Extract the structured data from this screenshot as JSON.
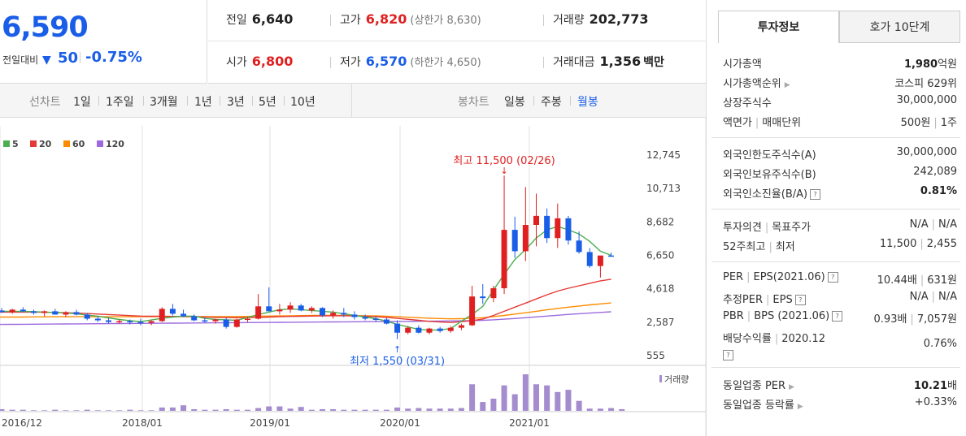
{
  "price": {
    "current": "6,590",
    "change_label": "전일대비",
    "change_dir_icon": "down-triangle",
    "change_value": "50",
    "change_pct": "-0.75%"
  },
  "stats": {
    "prev_close_label": "전일",
    "prev_close": "6,640",
    "high_label": "고가",
    "high": "6,820",
    "upper_limit_label": "(상한가 8,630)",
    "volume_label": "거래량",
    "volume": "202,773",
    "open_label": "시가",
    "open": "6,800",
    "low_label": "저가",
    "low": "6,570",
    "lower_limit_label": "(하한가 4,650)",
    "trade_value_label": "거래대금",
    "trade_value": "1,356",
    "trade_value_unit": "백만"
  },
  "toolbar": {
    "line_chart_label": "선차트",
    "ranges": [
      "1일",
      "1주일",
      "3개월",
      "1년",
      "3년",
      "5년",
      "10년"
    ],
    "candle_chart_label": "봉차트",
    "candle_periods": [
      "일봉",
      "주봉",
      "월봉"
    ],
    "active_candle_period": "월봉"
  },
  "chart_data": {
    "type": "candlestick",
    "period": "monthly",
    "legend": [
      {
        "name": "5",
        "color": "#4caf50"
      },
      {
        "name": "20",
        "color": "#e53935"
      },
      {
        "name": "60",
        "color": "#fb8c00"
      },
      {
        "name": "120",
        "color": "#9c6ade"
      }
    ],
    "y_ticks": [
      "12,745",
      "10,713",
      "8,682",
      "6,650",
      "4,618",
      "2,587",
      "555"
    ],
    "y_range": [
      555,
      12745
    ],
    "x_ticks": [
      "2016/12",
      "2018/01",
      "2019/01",
      "2020/01",
      "2021/01"
    ],
    "high_annotation": "최고 11,500 (02/26)",
    "low_annotation": "최저 1,550 (03/31)",
    "volume_label": "거래량",
    "candles": [
      {
        "o": 3300,
        "h": 3450,
        "l": 3150,
        "c": 3200
      },
      {
        "o": 3200,
        "h": 3400,
        "l": 3100,
        "c": 3350
      },
      {
        "o": 3350,
        "h": 3500,
        "l": 3200,
        "c": 3250
      },
      {
        "o": 3250,
        "h": 3350,
        "l": 3050,
        "c": 3150
      },
      {
        "o": 3150,
        "h": 3300,
        "l": 2950,
        "c": 3250
      },
      {
        "o": 3250,
        "h": 3400,
        "l": 3050,
        "c": 3050
      },
      {
        "o": 3050,
        "h": 3250,
        "l": 2900,
        "c": 3200
      },
      {
        "o": 3200,
        "h": 3350,
        "l": 3000,
        "c": 3050
      },
      {
        "o": 3050,
        "h": 3150,
        "l": 2700,
        "c": 2800
      },
      {
        "o": 2800,
        "h": 2950,
        "l": 2600,
        "c": 2700
      },
      {
        "o": 2700,
        "h": 2850,
        "l": 2500,
        "c": 2600
      },
      {
        "o": 2600,
        "h": 2750,
        "l": 2500,
        "c": 2650
      },
      {
        "o": 2650,
        "h": 2750,
        "l": 2450,
        "c": 2600
      },
      {
        "o": 2600,
        "h": 2800,
        "l": 2400,
        "c": 2550
      },
      {
        "o": 2550,
        "h": 2700,
        "l": 2400,
        "c": 2650
      },
      {
        "o": 2650,
        "h": 3500,
        "l": 2600,
        "c": 3400
      },
      {
        "o": 3400,
        "h": 3700,
        "l": 3000,
        "c": 3100
      },
      {
        "o": 3100,
        "h": 3350,
        "l": 2900,
        "c": 2950
      },
      {
        "o": 2950,
        "h": 3050,
        "l": 2650,
        "c": 2700
      },
      {
        "o": 2700,
        "h": 2850,
        "l": 2550,
        "c": 2650
      },
      {
        "o": 2650,
        "h": 2800,
        "l": 2500,
        "c": 2750
      },
      {
        "o": 2750,
        "h": 2850,
        "l": 2200,
        "c": 2300
      },
      {
        "o": 2300,
        "h": 2800,
        "l": 2250,
        "c": 2750
      },
      {
        "o": 2750,
        "h": 2900,
        "l": 2600,
        "c": 2800
      },
      {
        "o": 2800,
        "h": 4300,
        "l": 2750,
        "c": 3550
      },
      {
        "o": 3550,
        "h": 4700,
        "l": 3300,
        "c": 3250
      },
      {
        "o": 3250,
        "h": 3700,
        "l": 3050,
        "c": 3350
      },
      {
        "o": 3350,
        "h": 3800,
        "l": 3150,
        "c": 3600
      },
      {
        "o": 3600,
        "h": 3700,
        "l": 3250,
        "c": 3300
      },
      {
        "o": 3300,
        "h": 3550,
        "l": 3150,
        "c": 3450
      },
      {
        "o": 3450,
        "h": 3500,
        "l": 2900,
        "c": 3000
      },
      {
        "o": 3000,
        "h": 3300,
        "l": 2800,
        "c": 3150
      },
      {
        "o": 3150,
        "h": 3450,
        "l": 2900,
        "c": 3050
      },
      {
        "o": 3050,
        "h": 3250,
        "l": 2750,
        "c": 2900
      },
      {
        "o": 2900,
        "h": 3050,
        "l": 2700,
        "c": 2800
      },
      {
        "o": 2800,
        "h": 2950,
        "l": 2600,
        "c": 2750
      },
      {
        "o": 2750,
        "h": 2850,
        "l": 2450,
        "c": 2500
      },
      {
        "o": 2500,
        "h": 2700,
        "l": 1550,
        "c": 1950
      },
      {
        "o": 1950,
        "h": 2350,
        "l": 1850,
        "c": 2250
      },
      {
        "o": 2250,
        "h": 2400,
        "l": 1900,
        "c": 1950
      },
      {
        "o": 1950,
        "h": 2250,
        "l": 1850,
        "c": 2200
      },
      {
        "o": 2200,
        "h": 2300,
        "l": 1950,
        "c": 2050
      },
      {
        "o": 2050,
        "h": 2350,
        "l": 1950,
        "c": 2250
      },
      {
        "o": 2250,
        "h": 2500,
        "l": 2100,
        "c": 2400
      },
      {
        "o": 2400,
        "h": 4800,
        "l": 2350,
        "c": 4150
      },
      {
        "o": 4150,
        "h": 4900,
        "l": 3700,
        "c": 4050
      },
      {
        "o": 4050,
        "h": 4800,
        "l": 3800,
        "c": 4650
      },
      {
        "o": 4650,
        "h": 11500,
        "l": 4300,
        "c": 8200
      },
      {
        "o": 8200,
        "h": 9000,
        "l": 6500,
        "c": 6900
      },
      {
        "o": 6900,
        "h": 10800,
        "l": 6300,
        "c": 8500
      },
      {
        "o": 8500,
        "h": 10400,
        "l": 7200,
        "c": 9050
      },
      {
        "o": 9050,
        "h": 9500,
        "l": 7400,
        "c": 7700
      },
      {
        "o": 7700,
        "h": 9800,
        "l": 7100,
        "c": 8900
      },
      {
        "o": 8900,
        "h": 9050,
        "l": 7300,
        "c": 7550
      },
      {
        "o": 7550,
        "h": 8100,
        "l": 6750,
        "c": 6850
      },
      {
        "o": 6850,
        "h": 7100,
        "l": 5900,
        "c": 6000
      },
      {
        "o": 6000,
        "h": 6600,
        "l": 5300,
        "c": 6640
      },
      {
        "o": 6640,
        "h": 6820,
        "l": 6570,
        "c": 6590
      }
    ],
    "ma5": [
      3250,
      3250,
      3250,
      3240,
      3230,
      3200,
      3170,
      3150,
      3100,
      3020,
      2950,
      2850,
      2750,
      2680,
      2620,
      2720,
      2820,
      2900,
      2950,
      2960,
      2820,
      2750,
      2730,
      2700,
      2880,
      3050,
      3200,
      3350,
      3400,
      3350,
      3300,
      3250,
      3200,
      3100,
      3000,
      2900,
      2800,
      2650,
      2450,
      2300,
      2150,
      2100,
      2120,
      2200,
      2650,
      3050,
      3550,
      4550,
      5500,
      6400,
      7000,
      7700,
      8200,
      8400,
      8200,
      7950,
      7500,
      6900,
      6650
    ],
    "ma20": [
      3200,
      3200,
      3200,
      3200,
      3200,
      3190,
      3180,
      3160,
      3140,
      3110,
      3080,
      3050,
      3020,
      2990,
      2960,
      2950,
      2950,
      2940,
      2930,
      2920,
      2900,
      2880,
      2870,
      2860,
      2870,
      2880,
      2900,
      2920,
      2940,
      2950,
      2960,
      2970,
      2980,
      2980,
      2970,
      2950,
      2920,
      2880,
      2820,
      2760,
      2700,
      2640,
      2600,
      2570,
      2620,
      2680,
      2780,
      3000,
      3250,
      3500,
      3750,
      4000,
      4250,
      4480,
      4650,
      4800,
      4950,
      5100,
      5200
    ],
    "ma60": [
      2900,
      2900,
      2900,
      2900,
      2910,
      2910,
      2920,
      2920,
      2920,
      2920,
      2920,
      2920,
      2920,
      2920,
      2920,
      2920,
      2930,
      2930,
      2930,
      2930,
      2930,
      2930,
      2930,
      2930,
      2940,
      2950,
      2960,
      2970,
      2980,
      2990,
      3000,
      3000,
      3000,
      3000,
      2990,
      2980,
      2970,
      2950,
      2920,
      2890,
      2860,
      2830,
      2810,
      2790,
      2800,
      2820,
      2860,
      2930,
      3000,
      3080,
      3160,
      3250,
      3340,
      3420,
      3500,
      3570,
      3640,
      3700,
      3760
    ],
    "ma120": [
      2450,
      2450,
      2455,
      2460,
      2465,
      2470,
      2475,
      2480,
      2485,
      2490,
      2495,
      2500,
      2505,
      2510,
      2515,
      2520,
      2525,
      2530,
      2535,
      2540,
      2545,
      2550,
      2555,
      2560,
      2565,
      2570,
      2575,
      2580,
      2585,
      2590,
      2595,
      2600,
      2605,
      2610,
      2615,
      2620,
      2625,
      2630,
      2635,
      2640,
      2645,
      2650,
      2655,
      2660,
      2670,
      2680,
      2700,
      2730,
      2770,
      2810,
      2860,
      2910,
      2960,
      3010,
      3060,
      3100,
      3140,
      3180,
      3220
    ],
    "volumes": [
      0.3,
      0.2,
      0.2,
      0.1,
      0.1,
      0.2,
      0.1,
      0.1,
      0.2,
      0.1,
      0.1,
      0.1,
      0.2,
      0.1,
      0.1,
      0.6,
      0.6,
      1.0,
      0.3,
      0.2,
      0.2,
      0.3,
      0.2,
      0.2,
      0.5,
      0.8,
      0.8,
      0.4,
      0.7,
      0.2,
      0.3,
      0.3,
      0.2,
      0.2,
      0.2,
      0.2,
      0.2,
      0.6,
      0.4,
      0.5,
      0.4,
      0.4,
      0.4,
      0.5,
      4.8,
      1.6,
      2.2,
      4.6,
      3.0,
      6.6,
      4.8,
      4.6,
      3.4,
      3.8,
      1.8,
      0.4,
      0.4,
      0.5,
      0.3
    ]
  },
  "invest_panel": {
    "tab_active": "투자정보",
    "tab_other": "호가 10단계",
    "market_cap_label": "시가총액",
    "market_cap": "1,980",
    "market_cap_unit": "억원",
    "market_cap_rank_label": "시가총액순위",
    "market_cap_rank": "코스피 629위",
    "shares_label": "상장주식수",
    "shares": "30,000,000",
    "par_label": "액면가",
    "trade_unit_label": "매매단위",
    "par": "500원",
    "trade_unit": "1주",
    "foreign_limit_label": "외국인한도주식수(A)",
    "foreign_limit": "30,000,000",
    "foreign_hold_label": "외국인보유주식수(B)",
    "foreign_hold": "242,089",
    "foreign_ratio_label": "외국인소진율(B/A)",
    "foreign_ratio": "0.81%",
    "opinion_label": "투자의견",
    "target_label": "목표주가",
    "opinion": "N/A",
    "target": "N/A",
    "week52_label": "52주최고",
    "week52_low_label": "최저",
    "week52_high": "11,500",
    "week52_low": "2,455",
    "per_label": "PER",
    "eps_label": "EPS(2021.06)",
    "per": "10.44배",
    "eps": "631원",
    "est_per_label": "추정PER",
    "est_eps_label": "EPS",
    "est_per": "N/A",
    "est_eps": "N/A",
    "pbr_label": "PBR",
    "bps_label": "BPS (2021.06)",
    "pbr": "0.93배",
    "bps": "7,057원",
    "div_label": "배당수익률",
    "div_date": "2020.12",
    "div": "0.76%",
    "ind_per_label": "동일업종 PER",
    "ind_per": "10.21",
    "ind_per_unit": "배",
    "ind_chg_label": "동일업종 등락률",
    "ind_chg": "+0.33%"
  }
}
